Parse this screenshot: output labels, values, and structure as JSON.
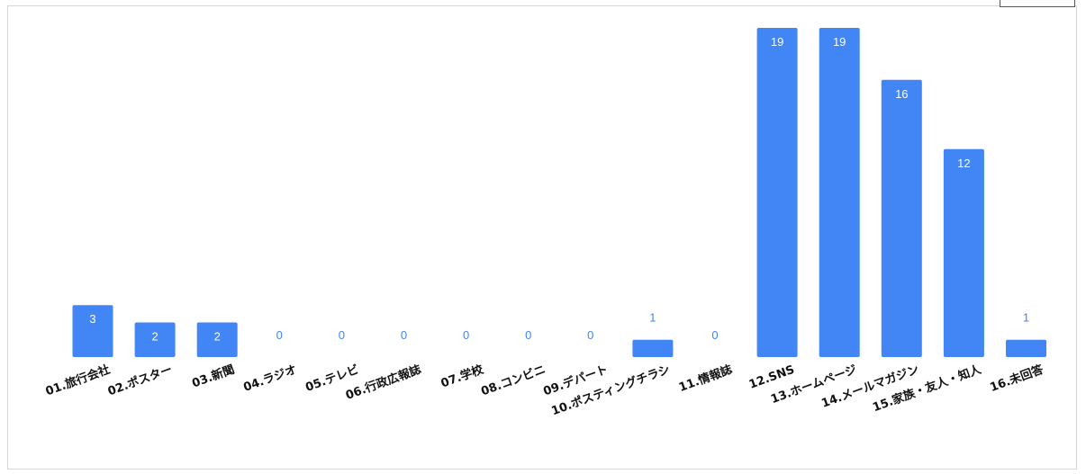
{
  "chart_data": {
    "type": "bar",
    "title": "",
    "xlabel": "",
    "ylabel": "",
    "ylim": [
      0,
      19
    ],
    "grid": false,
    "categories": [
      "01.旅行会社",
      "02.ポスター",
      "03.新聞",
      "04.ラジオ",
      "05.テレビ",
      "06.行政広報誌",
      "07.学校",
      "08.コンビニ",
      "09.デパート",
      "10.ポスティングチラシ",
      "11.情報誌",
      "12.SNS",
      "13.ホームページ",
      "14.メールマガジン",
      "15.家族・友人・知人",
      "16.未回答"
    ],
    "values": [
      3,
      2,
      2,
      0,
      0,
      0,
      0,
      0,
      0,
      1,
      0,
      19,
      19,
      16,
      12,
      1
    ],
    "bar_color": "#4285f4",
    "inside_label_color": "#ffffff",
    "outside_label_color": "#4285f4"
  }
}
